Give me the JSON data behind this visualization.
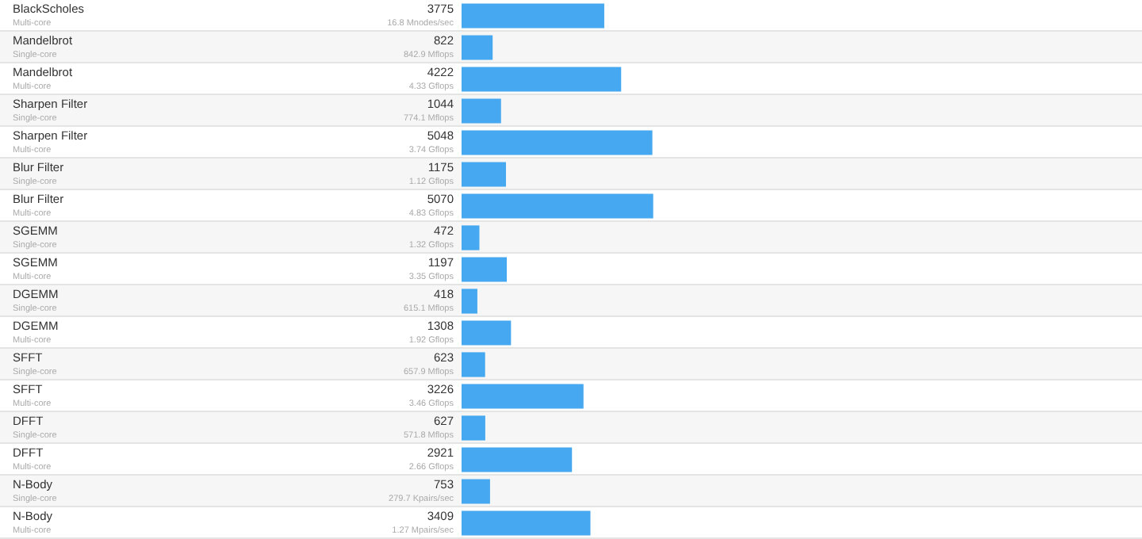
{
  "chart_data": {
    "type": "bar",
    "orientation": "horizontal",
    "categories": [
      "BlackScholes\nMulti-core",
      "Mandelbrot\nSingle-core",
      "Mandelbrot\nMulti-core",
      "Sharpen Filter\nSingle-core",
      "Sharpen Filter\nMulti-core",
      "Blur Filter\nSingle-core",
      "Blur Filter\nMulti-core",
      "SGEMM\nSingle-core",
      "SGEMM\nMulti-core",
      "DGEMM\nSingle-core",
      "DGEMM\nMulti-core",
      "SFFT\nSingle-core",
      "SFFT\nMulti-core",
      "DFFT\nSingle-core",
      "DFFT\nMulti-core",
      "N-Body\nSingle-core",
      "N-Body\nMulti-core"
    ],
    "values": [
      3775,
      822,
      4222,
      1044,
      5048,
      1175,
      5070,
      472,
      1197,
      418,
      1308,
      623,
      3226,
      627,
      2921,
      753,
      3409
    ],
    "color": "#45a8f0",
    "xlim": [
      0,
      18000
    ],
    "data_labels": true,
    "annotations": [
      "16.8 Mnodes/sec",
      "842.9 Mflops",
      "4.33 Gflops",
      "774.1 Mflops",
      "3.74 Gflops",
      "1.12 Gflops",
      "4.83 Gflops",
      "1.32 Gflops",
      "3.35 Gflops",
      "615.1 Mflops",
      "1.92 Gflops",
      "657.9 Mflops",
      "3.46 Gflops",
      "571.8 Mflops",
      "2.66 Gflops",
      "279.7 Kpairs/sec",
      "1.27 Mpairs/sec"
    ],
    "legend": false,
    "tick_labels": false
  }
}
